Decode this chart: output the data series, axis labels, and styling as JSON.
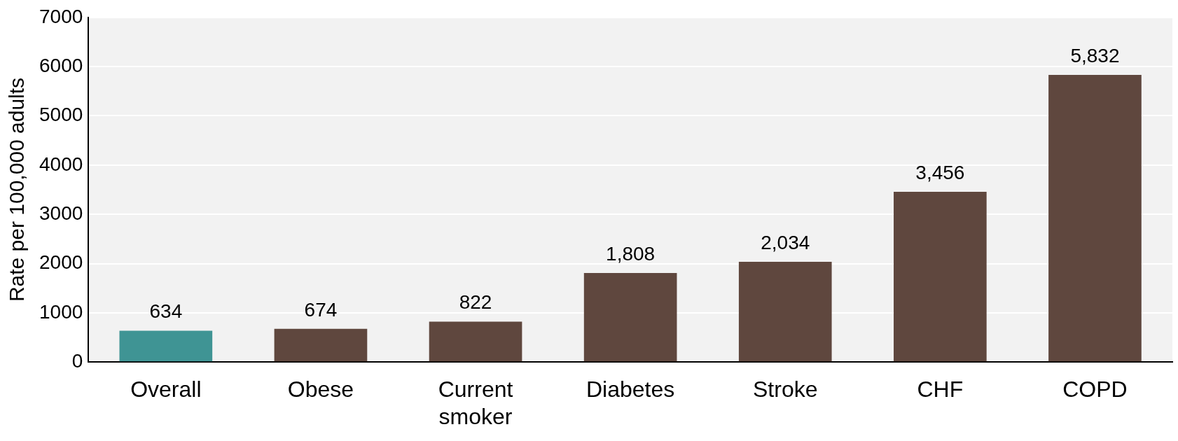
{
  "chart_data": {
    "type": "bar",
    "ylabel": "Rate per 100,000 adults",
    "categories": [
      "Overall",
      "Obese",
      "Current smoker",
      "Diabetes",
      "Stroke",
      "CHF",
      "COPD"
    ],
    "values": [
      634,
      674,
      822,
      1808,
      2034,
      3456,
      5832
    ],
    "colors": [
      "#3f9494",
      "#5f473e",
      "#5f473e",
      "#5f473e",
      "#5f473e",
      "#5f473e",
      "#5f473e"
    ],
    "value_labels": [
      "634",
      "674",
      "822",
      "1,808",
      "2,034",
      "3,456",
      "5,832"
    ],
    "ylim": [
      0,
      7000
    ],
    "yticks": [
      0,
      1000,
      2000,
      3000,
      4000,
      5000,
      6000,
      7000
    ],
    "grid": "y",
    "legend": false
  }
}
